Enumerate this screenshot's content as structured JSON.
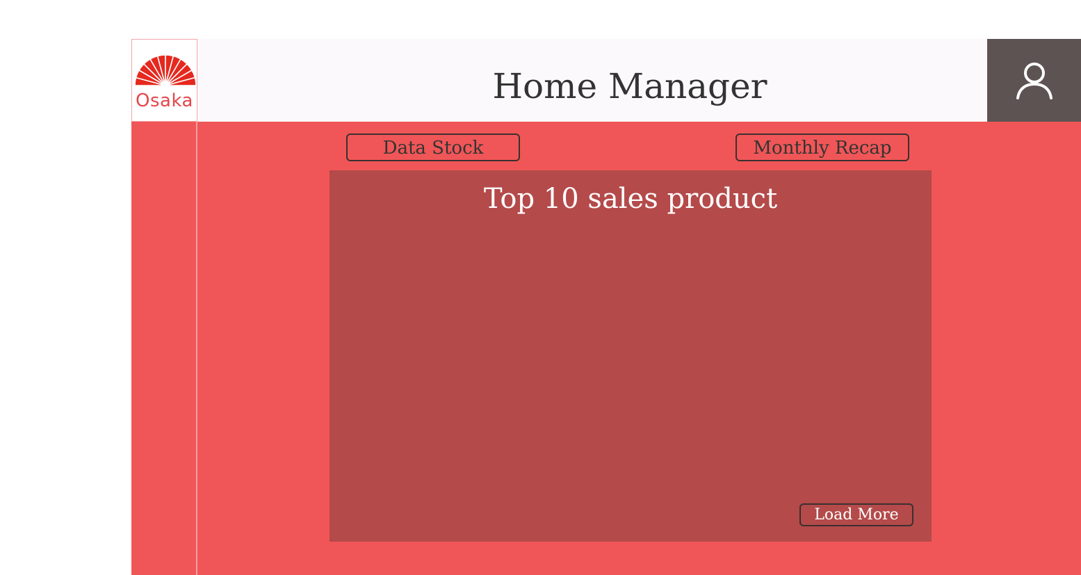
{
  "brand": {
    "name": "Osaka",
    "logo_icon": "fan-icon",
    "logo_color": "#e5291f"
  },
  "header": {
    "title": "Home Manager",
    "profile_icon": "user-icon"
  },
  "nav": {
    "data_stock_label": "Data Stock",
    "monthly_recap_label": "Monthly Recap"
  },
  "panel": {
    "title": "Top 10 sales product",
    "load_more_label": "Load More"
  },
  "colors": {
    "primary": "#f05657",
    "panel": "#b44a4a",
    "header_bg": "#fbf9fc",
    "profile_bg": "#5e5353",
    "button_border": "#3c2f30"
  }
}
